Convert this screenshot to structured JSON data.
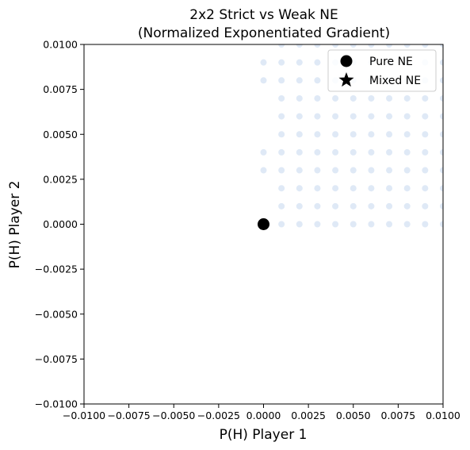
{
  "chart_data": {
    "type": "scatter",
    "title_line1": "2x2 Strict vs Weak NE",
    "title_line2": "(Normalized Exponentiated Gradient)",
    "xlabel": "P(H) Player 1",
    "ylabel": "P(H) Player 2",
    "xlim": [
      -0.01,
      0.01
    ],
    "ylim": [
      -0.01,
      0.01
    ],
    "x_ticks": [
      -0.01,
      -0.0075,
      -0.005,
      -0.0025,
      0.0,
      0.0025,
      0.005,
      0.0075,
      0.01
    ],
    "x_tick_labels": [
      "−0.0100",
      "−0.0075",
      "−0.0050",
      "−0.0025",
      "0.0000",
      "0.0025",
      "0.0050",
      "0.0075",
      "0.0100"
    ],
    "y_ticks": [
      -0.01,
      -0.0075,
      -0.005,
      -0.0025,
      0.0,
      0.0025,
      0.005,
      0.0075,
      0.01
    ],
    "y_tick_labels": [
      "−0.0100",
      "−0.0075",
      "−0.0050",
      "−0.0025",
      "0.0000",
      "0.0025",
      "0.0050",
      "0.0075",
      "0.0100"
    ],
    "grid": false,
    "legend_position": "top-right",
    "series": [
      {
        "name": "",
        "kind": "trajectory-points",
        "color": "#aec7e8",
        "points": [
          [
            0.001,
            0.0
          ],
          [
            0.002,
            0.0
          ],
          [
            0.003,
            0.0
          ],
          [
            0.004,
            0.0
          ],
          [
            0.005,
            0.0
          ],
          [
            0.006,
            0.0
          ],
          [
            0.007,
            0.0
          ],
          [
            0.008,
            0.0
          ],
          [
            0.009,
            0.0
          ],
          [
            0.01,
            0.0
          ],
          [
            0.001,
            0.001
          ],
          [
            0.002,
            0.001
          ],
          [
            0.003,
            0.001
          ],
          [
            0.004,
            0.001
          ],
          [
            0.005,
            0.001
          ],
          [
            0.006,
            0.001
          ],
          [
            0.007,
            0.001
          ],
          [
            0.008,
            0.001
          ],
          [
            0.009,
            0.001
          ],
          [
            0.01,
            0.001
          ],
          [
            0.001,
            0.002
          ],
          [
            0.002,
            0.002
          ],
          [
            0.003,
            0.002
          ],
          [
            0.004,
            0.002
          ],
          [
            0.005,
            0.002
          ],
          [
            0.006,
            0.002
          ],
          [
            0.007,
            0.002
          ],
          [
            0.008,
            0.002
          ],
          [
            0.009,
            0.002
          ],
          [
            0.01,
            0.002
          ],
          [
            0.0,
            0.003
          ],
          [
            0.001,
            0.003
          ],
          [
            0.002,
            0.003
          ],
          [
            0.003,
            0.003
          ],
          [
            0.004,
            0.003
          ],
          [
            0.005,
            0.003
          ],
          [
            0.006,
            0.003
          ],
          [
            0.007,
            0.003
          ],
          [
            0.008,
            0.003
          ],
          [
            0.009,
            0.003
          ],
          [
            0.01,
            0.003
          ],
          [
            0.0,
            0.004
          ],
          [
            0.001,
            0.004
          ],
          [
            0.002,
            0.004
          ],
          [
            0.003,
            0.004
          ],
          [
            0.004,
            0.004
          ],
          [
            0.005,
            0.004
          ],
          [
            0.006,
            0.004
          ],
          [
            0.007,
            0.004
          ],
          [
            0.008,
            0.004
          ],
          [
            0.009,
            0.004
          ],
          [
            0.01,
            0.004
          ],
          [
            0.001,
            0.005
          ],
          [
            0.002,
            0.005
          ],
          [
            0.003,
            0.005
          ],
          [
            0.004,
            0.005
          ],
          [
            0.005,
            0.005
          ],
          [
            0.006,
            0.005
          ],
          [
            0.007,
            0.005
          ],
          [
            0.008,
            0.005
          ],
          [
            0.009,
            0.005
          ],
          [
            0.01,
            0.005
          ],
          [
            0.001,
            0.006
          ],
          [
            0.002,
            0.006
          ],
          [
            0.003,
            0.006
          ],
          [
            0.004,
            0.006
          ],
          [
            0.005,
            0.006
          ],
          [
            0.006,
            0.006
          ],
          [
            0.007,
            0.006
          ],
          [
            0.008,
            0.006
          ],
          [
            0.009,
            0.006
          ],
          [
            0.01,
            0.006
          ],
          [
            0.001,
            0.007
          ],
          [
            0.002,
            0.007
          ],
          [
            0.003,
            0.007
          ],
          [
            0.004,
            0.007
          ],
          [
            0.005,
            0.007
          ],
          [
            0.006,
            0.007
          ],
          [
            0.007,
            0.007
          ],
          [
            0.008,
            0.007
          ],
          [
            0.009,
            0.007
          ],
          [
            0.01,
            0.007
          ],
          [
            0.0,
            0.008
          ],
          [
            0.001,
            0.008
          ],
          [
            0.002,
            0.008
          ],
          [
            0.003,
            0.008
          ],
          [
            0.004,
            0.008
          ],
          [
            0.005,
            0.008
          ],
          [
            0.006,
            0.008
          ],
          [
            0.007,
            0.008
          ],
          [
            0.008,
            0.008
          ],
          [
            0.009,
            0.008
          ],
          [
            0.01,
            0.008
          ],
          [
            0.0,
            0.009
          ],
          [
            0.001,
            0.009
          ],
          [
            0.002,
            0.009
          ],
          [
            0.003,
            0.009
          ],
          [
            0.004,
            0.009
          ],
          [
            0.005,
            0.009
          ],
          [
            0.006,
            0.009
          ],
          [
            0.007,
            0.009
          ],
          [
            0.008,
            0.009
          ],
          [
            0.009,
            0.009
          ],
          [
            0.01,
            0.009
          ],
          [
            0.001,
            0.01
          ],
          [
            0.002,
            0.01
          ],
          [
            0.003,
            0.01
          ],
          [
            0.004,
            0.01
          ],
          [
            0.005,
            0.01
          ],
          [
            0.006,
            0.01
          ],
          [
            0.007,
            0.01
          ],
          [
            0.008,
            0.01
          ],
          [
            0.009,
            0.01
          ],
          [
            0.01,
            0.01
          ]
        ]
      },
      {
        "name": "Pure NE",
        "kind": "circle-marker",
        "color": "#000000",
        "points": [
          [
            0.0,
            0.0
          ]
        ]
      },
      {
        "name": "Mixed NE",
        "kind": "star-marker",
        "color": "#000000",
        "points": []
      }
    ],
    "legend": [
      {
        "label": "Pure NE",
        "marker": "circle"
      },
      {
        "label": "Mixed NE",
        "marker": "star"
      }
    ]
  }
}
